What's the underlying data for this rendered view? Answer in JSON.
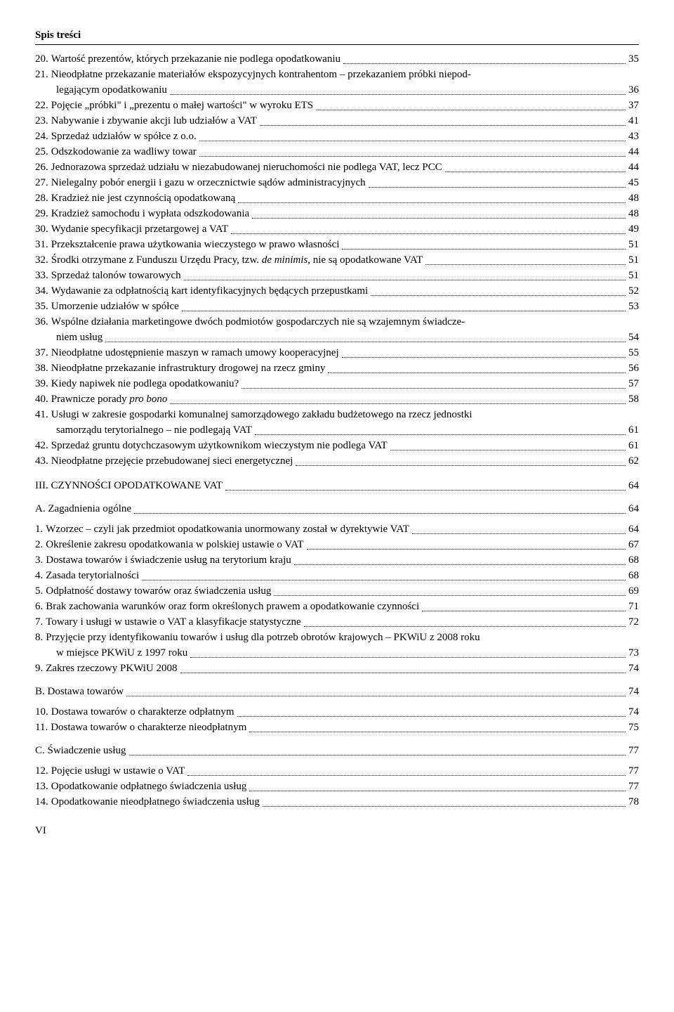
{
  "header": "Spis treści",
  "entries": [
    {
      "n": "20.",
      "t": "Wartość prezentów, których przekazanie nie podlega opodatkowaniu",
      "p": "35"
    },
    {
      "n": "21.",
      "t": "Nieodpłatne przekazanie materiałów ekspozycyjnych kontrahentom – przekazaniem próbki niepod-",
      "p": null,
      "cont": "legającym opodatkowaniu",
      "cp": "36"
    },
    {
      "n": "22.",
      "t": "Pojęcie „próbki\" i „prezentu o małej wartości\" w wyroku ETS",
      "p": "37"
    },
    {
      "n": "23.",
      "t": "Nabywanie i zbywanie akcji lub udziałów a VAT",
      "p": "41"
    },
    {
      "n": "24.",
      "t": "Sprzedaż udziałów w spółce z o.o.",
      "p": "43"
    },
    {
      "n": "25.",
      "t": "Odszkodowanie za wadliwy towar",
      "p": "44"
    },
    {
      "n": "26.",
      "t": "Jednorazowa sprzedaż udziału w niezabudowanej nieruchomości nie podlega VAT, lecz PCC",
      "p": "44"
    },
    {
      "n": "27.",
      "t": "Nielegalny pobór energii i gazu w orzecznictwie sądów administracyjnych",
      "p": "45"
    },
    {
      "n": "28.",
      "t": "Kradzież nie jest czynnością opodatkowaną",
      "p": "48"
    },
    {
      "n": "29.",
      "t": "Kradzież samochodu i wypłata odszkodowania",
      "p": "48"
    },
    {
      "n": "30.",
      "t": "Wydanie specyfikacji przetargowej a VAT",
      "p": "49"
    },
    {
      "n": "31.",
      "t": "Przekształcenie prawa użytkowania wieczystego w prawo własności",
      "p": "51"
    },
    {
      "n": "32.",
      "t": "Środki otrzymane z Funduszu Urzędu Pracy, tzw. <em>de minimis</em>, nie są opodatkowane VAT",
      "p": "51"
    },
    {
      "n": "33.",
      "t": "Sprzedaż talonów towarowych",
      "p": "51"
    },
    {
      "n": "34.",
      "t": "Wydawanie za odpłatnością kart identyfikacyjnych będących przepustkami",
      "p": "52"
    },
    {
      "n": "35.",
      "t": "Umorzenie udziałów w spółce",
      "p": "53"
    },
    {
      "n": "36.",
      "t": "Wspólne działania marketingowe dwóch podmiotów gospodarczych nie są wzajemnym świadcze-",
      "p": null,
      "cont": "niem usług",
      "cp": "54"
    },
    {
      "n": "37.",
      "t": "Nieodpłatne udostępnienie maszyn w ramach umowy kooperacyjnej",
      "p": "55"
    },
    {
      "n": "38.",
      "t": "Nieodpłatne przekazanie infrastruktury drogowej na rzecz gminy",
      "p": "56"
    },
    {
      "n": "39.",
      "t": "Kiedy napiwek nie podlega opodatkowaniu?",
      "p": "57"
    },
    {
      "n": "40.",
      "t": "Prawnicze porady <em>pro bono</em>",
      "p": "58"
    },
    {
      "n": "41.",
      "t": "Usługi w zakresie gospodarki komunalnej samorządowego zakładu budżetowego na rzecz jednostki",
      "p": null,
      "cont": "samorządu terytorialnego – nie podlegają VAT",
      "cp": "61"
    },
    {
      "n": "42.",
      "t": "Sprzedaż gruntu dotychczasowym użytkownikom wieczystym nie podlega VAT",
      "p": "61"
    },
    {
      "n": "43.",
      "t": "Nieodpłatne przejęcie przebudowanej sieci energetycznej",
      "p": "62"
    }
  ],
  "section3": {
    "t": "III. CZYNNOŚCI OPODATKOWANE VAT",
    "p": "64"
  },
  "subA": {
    "t": "A. Zagadnienia ogólne",
    "p": "64"
  },
  "entriesA": [
    {
      "n": "1.",
      "t": "Wzorzec – czyli jak przedmiot opodatkowania unormowany został w dyrektywie VAT",
      "p": "64"
    },
    {
      "n": "2.",
      "t": "Określenie zakresu opodatkowania w polskiej ustawie o VAT",
      "p": "67"
    },
    {
      "n": "3.",
      "t": "Dostawa towarów i świadczenie usług na terytorium kraju",
      "p": "68"
    },
    {
      "n": "4.",
      "t": "Zasada terytorialności",
      "p": "68"
    },
    {
      "n": "5.",
      "t": "Odpłatność dostawy towarów oraz świadczenia usług",
      "p": "69"
    },
    {
      "n": "6.",
      "t": "Brak zachowania warunków oraz form określonych prawem a opodatkowanie czynności",
      "p": "71"
    },
    {
      "n": "7.",
      "t": "Towary i usługi w ustawie o VAT a klasyfikacje statystyczne",
      "p": "72"
    },
    {
      "n": "8.",
      "t": "Przyjęcie przy identyfikowaniu towarów i usług dla potrzeb obrotów krajowych – PKWiU z 2008 roku",
      "p": null,
      "cont": "w miejsce PKWiU z 1997 roku",
      "cp": "73"
    },
    {
      "n": "9.",
      "t": "Zakres rzeczowy PKWiU 2008",
      "p": "74"
    }
  ],
  "subB": {
    "t": "B. Dostawa towarów",
    "p": "74"
  },
  "entriesB": [
    {
      "n": "10.",
      "t": "Dostawa towarów o charakterze odpłatnym",
      "p": "74"
    },
    {
      "n": "11.",
      "t": "Dostawa towarów o charakterze nieodpłatnym",
      "p": "75"
    }
  ],
  "subC": {
    "t": "C. Świadczenie usług",
    "p": "77"
  },
  "entriesC": [
    {
      "n": "12.",
      "t": "Pojęcie usługi w ustawie o VAT",
      "p": "77"
    },
    {
      "n": "13.",
      "t": "Opodatkowanie odpłatnego świadczenia usług",
      "p": "77"
    },
    {
      "n": "14.",
      "t": "Opodatkowanie nieodpłatnego świadczenia usług",
      "p": "78"
    }
  ],
  "footer": "VI"
}
